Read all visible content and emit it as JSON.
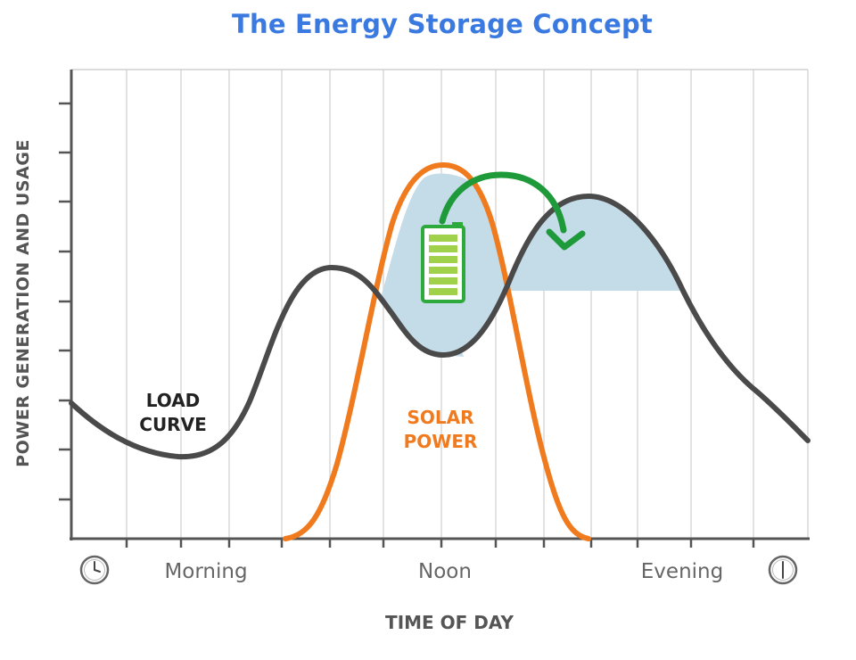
{
  "title": "The Energy Storage Concept",
  "y_axis_label": "POWER GENERATION AND USAGE",
  "x_axis_label": "TIME OF DAY",
  "x_ticks": [
    "Morning",
    "Noon",
    "Evening"
  ],
  "load_curve_label": [
    "LOAD",
    "CURVE"
  ],
  "solar_label": [
    "SOLAR",
    "POWER"
  ],
  "icons": [
    "clock-icon",
    "battery-icon",
    "arrow-icon"
  ],
  "colors": {
    "title": "#3a7ae0",
    "load_curve": "#4a4a4a",
    "solar_curve": "#f07a1e",
    "storage_area": "#c4dbe8",
    "battery": "#2eaa3c",
    "arrow": "#1f9a3a",
    "axis": "#555555",
    "grid": "#d9d9d9"
  }
}
